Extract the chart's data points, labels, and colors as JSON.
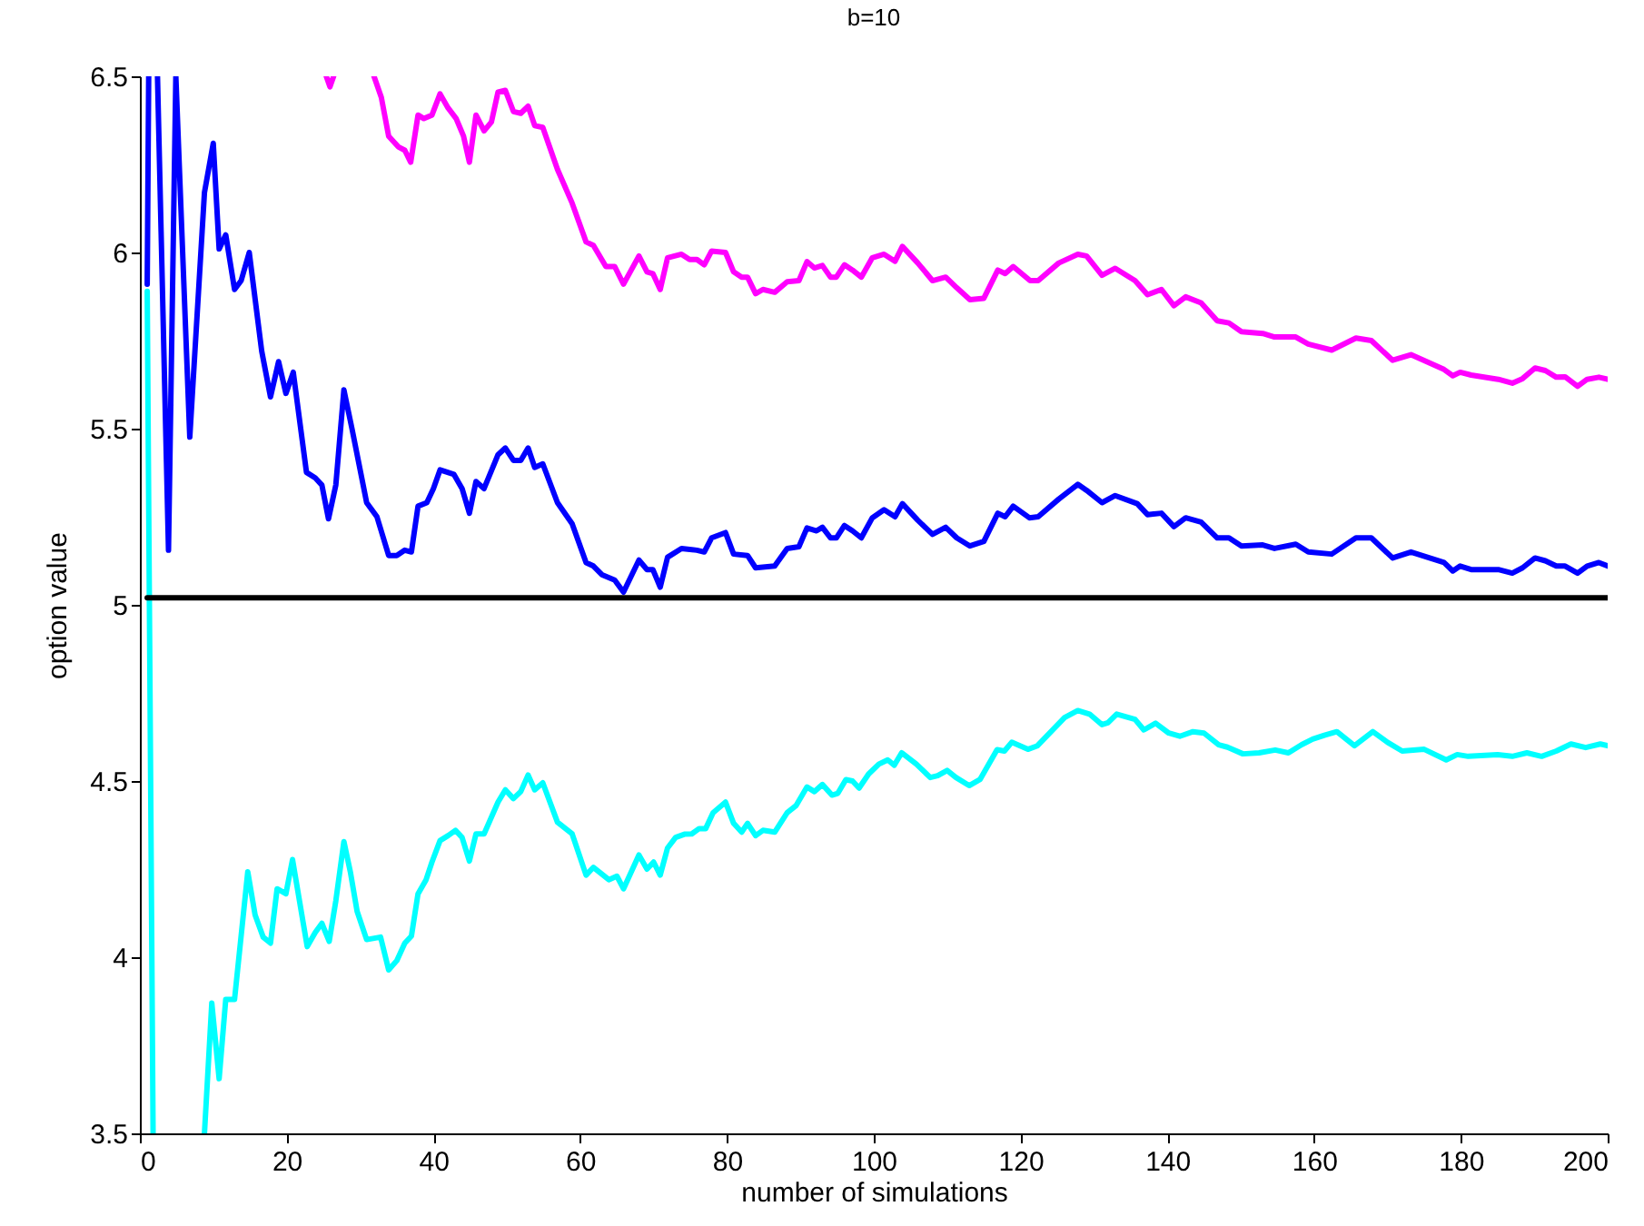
{
  "chart_data": {
    "type": "line",
    "title": "b=10",
    "xlabel": "number of simulations",
    "ylabel": "option value",
    "xlim": [
      0,
      200
    ],
    "ylim": [
      3.5,
      6.5
    ],
    "xticks": [
      0,
      20,
      40,
      60,
      80,
      100,
      120,
      140,
      160,
      180,
      200
    ],
    "yticks": [
      3.5,
      4,
      4.5,
      5,
      5.5,
      6,
      6.5
    ],
    "grid": false,
    "legend": false,
    "line_style": "solid",
    "series": [
      {
        "color": "#ff00ff",
        "x": [
          25.4,
          25.9,
          26.4,
          29,
          31.9,
          32.9,
          33.9,
          35.2,
          36.1,
          36.9,
          37.9,
          38.7,
          39.8,
          40.9,
          42,
          43.1,
          44.1,
          44.9,
          45.8,
          46.9,
          47.9,
          48.8,
          49.8,
          50.9,
          51.9,
          52.9,
          53.8,
          54.9,
          56.9,
          58.9,
          60.8,
          61.8,
          63.5,
          64.7,
          65.9,
          68,
          69.1,
          69.9,
          70.9,
          71.9,
          73.8,
          74.9,
          75.9,
          76.9,
          77.9,
          79.8,
          80.9,
          82,
          82.8,
          83.9,
          84.9,
          86.5,
          88.2,
          89.8,
          90.9,
          91.9,
          93,
          94.1,
          94.9,
          96,
          97.1,
          98.3,
          99.8,
          101.4,
          102.9,
          103.9,
          106,
          108,
          109.8,
          111.3,
          113.1,
          115,
          116.9,
          117.9,
          119,
          121.3,
          122.4,
          125.2,
          127.8,
          129,
          131.1,
          132.9,
          135.6,
          137.3,
          139.2,
          140.9,
          142.5,
          144.6,
          146.8,
          148.4,
          150.1,
          153,
          154.6,
          157.5,
          159.2,
          162.4,
          165.7,
          167.8,
          170.7,
          173.2,
          177.7,
          178.9,
          179.9,
          181.4,
          185.1,
          187,
          188.4,
          190.1,
          191.5,
          193,
          194.2,
          195.9,
          197.2,
          198.8,
          200
        ],
        "values": [
          6.5,
          6.47,
          6.5,
          null,
          6.5,
          6.44,
          6.33,
          6.3,
          6.29,
          6.256,
          6.39,
          6.38,
          6.39,
          6.45,
          6.41,
          6.38,
          6.33,
          6.256,
          6.39,
          6.345,
          6.37,
          6.455,
          6.46,
          6.4,
          6.395,
          6.415,
          6.36,
          6.355,
          6.236,
          6.14,
          6.03,
          6.02,
          5.96,
          5.96,
          5.91,
          5.99,
          5.945,
          5.94,
          5.895,
          5.985,
          5.995,
          5.98,
          5.98,
          5.965,
          6.004,
          6,
          5.945,
          5.93,
          5.93,
          5.883,
          5.895,
          5.887,
          5.917,
          5.92,
          5.974,
          5.956,
          5.963,
          5.93,
          5.93,
          5.965,
          5.95,
          5.93,
          5.985,
          5.995,
          5.975,
          6.017,
          5.97,
          5.92,
          5.93,
          5.9,
          5.866,
          5.87,
          5.95,
          5.94,
          5.96,
          5.92,
          5.92,
          5.97,
          5.995,
          5.99,
          5.935,
          5.955,
          5.92,
          5.88,
          5.895,
          5.849,
          5.874,
          5.857,
          5.806,
          5.8,
          5.775,
          5.77,
          5.76,
          5.76,
          5.74,
          5.723,
          5.757,
          5.75,
          5.694,
          5.71,
          5.668,
          5.65,
          5.66,
          5.652,
          5.64,
          5.629,
          5.642,
          5.672,
          5.665,
          5.646,
          5.647,
          5.62,
          5.64,
          5.646,
          5.64
        ]
      },
      {
        "color": "#0000ff",
        "x": [
          1,
          1.2,
          2,
          2.4,
          3.9,
          4.9,
          6.8,
          8.8,
          10,
          10.8,
          11.7,
          12.9,
          13.8,
          14.9,
          16.6,
          17.8,
          18.9,
          19.9,
          20.9,
          22.7,
          23.9,
          24.8,
          25.7,
          26.7,
          27.8,
          28.9,
          30.9,
          32.3,
          33.9,
          35,
          36.1,
          37,
          37.9,
          39.1,
          40,
          40.9,
          42.8,
          43.9,
          44.9,
          45.8,
          46.9,
          48.8,
          49.8,
          50.9,
          51.9,
          52.9,
          53.8,
          54.9,
          56.9,
          58.9,
          60.8,
          61.8,
          63,
          64.7,
          65.9,
          68,
          69.1,
          69.9,
          70.9,
          71.9,
          73.8,
          75.9,
          76.9,
          77.9,
          79.8,
          80.9,
          82.8,
          83.9,
          86.5,
          88.2,
          89.8,
          90.9,
          92.2,
          93,
          94.1,
          94.9,
          96,
          97.1,
          98.3,
          99.8,
          101.4,
          102.9,
          103.9,
          106,
          108,
          109.8,
          111.3,
          113.1,
          115,
          116.9,
          117.9,
          119,
          121.2,
          122.4,
          125.2,
          127.8,
          129,
          131.1,
          132.9,
          135.9,
          137.3,
          139.2,
          140.9,
          142.5,
          144.6,
          146.8,
          148.4,
          150.1,
          153,
          154.6,
          157.5,
          159.2,
          162.4,
          165.7,
          167.8,
          170.7,
          173.2,
          177.7,
          178.9,
          179.9,
          181.4,
          185.1,
          187,
          188.4,
          190.1,
          191.5,
          193,
          194.2,
          195.9,
          197.2,
          198.8,
          200
        ],
        "values": [
          5.91,
          6.5,
          null,
          6.5,
          5.155,
          6.5,
          5.476,
          6.17,
          6.31,
          6.01,
          6.05,
          5.895,
          5.92,
          6,
          5.72,
          5.59,
          5.69,
          5.6,
          5.66,
          5.376,
          5.36,
          5.34,
          5.244,
          5.34,
          5.61,
          5.5,
          5.29,
          5.25,
          5.14,
          5.14,
          5.155,
          5.15,
          5.28,
          5.29,
          5.33,
          5.383,
          5.37,
          5.33,
          5.26,
          5.35,
          5.33,
          5.426,
          5.445,
          5.41,
          5.41,
          5.445,
          5.39,
          5.4,
          5.29,
          5.23,
          5.12,
          5.11,
          5.085,
          5.07,
          5.036,
          5.127,
          5.1,
          5.1,
          5.05,
          5.135,
          5.16,
          5.155,
          5.15,
          5.19,
          5.205,
          5.144,
          5.14,
          5.105,
          5.11,
          5.16,
          5.165,
          5.218,
          5.21,
          5.22,
          5.19,
          5.19,
          5.225,
          5.21,
          5.19,
          5.247,
          5.27,
          5.25,
          5.287,
          5.24,
          5.2,
          5.22,
          5.19,
          5.167,
          5.18,
          5.26,
          5.25,
          5.28,
          5.247,
          5.25,
          5.3,
          5.342,
          5.325,
          5.29,
          5.31,
          5.287,
          5.256,
          5.26,
          5.222,
          5.247,
          5.235,
          5.19,
          5.19,
          5.167,
          5.17,
          5.16,
          5.172,
          5.15,
          5.144,
          5.19,
          5.19,
          5.133,
          5.15,
          5.12,
          5.096,
          5.11,
          5.1,
          5.1,
          5.09,
          5.105,
          5.133,
          5.125,
          5.11,
          5.11,
          5.09,
          5.11,
          5.12,
          5.11
        ]
      },
      {
        "color": "#00ffff",
        "x": [
          1,
          1.8,
          5,
          8.8,
          9.8,
          10.8,
          11.7,
          12.9,
          14.7,
          15.7,
          16.8,
          17.8,
          18.7,
          19.9,
          20.8,
          22.8,
          23.9,
          24.8,
          25.8,
          26.7,
          27.8,
          28.7,
          29.6,
          30.9,
          32.8,
          33.9,
          35,
          36.1,
          37,
          37.9,
          39,
          39.8,
          40.9,
          42,
          43,
          43.9,
          44.9,
          45.8,
          46.9,
          48.8,
          49.8,
          50.9,
          51.9,
          52.9,
          53.8,
          54.9,
          56.9,
          58.9,
          60.8,
          61.8,
          63.9,
          65,
          65.9,
          68,
          69.1,
          70,
          70.9,
          71.9,
          73,
          74.2,
          75.2,
          76.2,
          77.1,
          78.1,
          79.8,
          80.9,
          82,
          82.8,
          83.9,
          84.9,
          86.5,
          88.2,
          89.4,
          90.9,
          91.9,
          93,
          94.3,
          95.1,
          96.2,
          97.1,
          98,
          99.3,
          100.7,
          101.9,
          102.8,
          103.8,
          105.8,
          107.7,
          108.7,
          110,
          111.2,
          113,
          114.5,
          116.8,
          117.8,
          118.8,
          121,
          122.3,
          126,
          127.8,
          129.4,
          131.1,
          131.9,
          133.1,
          135.6,
          136.8,
          138.4,
          140.2,
          141.7,
          143.5,
          145,
          147,
          148.2,
          150.3,
          152.5,
          154.7,
          156.5,
          158.3,
          159.8,
          161.4,
          163.1,
          165.5,
          168,
          170,
          172,
          175,
          178,
          179.5,
          181,
          185,
          187,
          189,
          191,
          193,
          195,
          197,
          199,
          200
        ],
        "values": [
          5.89,
          3.5,
          null,
          3.5,
          3.87,
          3.655,
          3.88,
          3.88,
          4.242,
          4.12,
          4.057,
          4.04,
          4.194,
          4.18,
          4.277,
          4.03,
          4.07,
          4.096,
          4.045,
          4.16,
          4.328,
          4.24,
          4.13,
          4.05,
          4.057,
          3.964,
          3.99,
          4.04,
          4.06,
          4.18,
          4.22,
          4.27,
          4.331,
          4.345,
          4.36,
          4.34,
          4.273,
          4.35,
          4.35,
          4.44,
          4.475,
          4.45,
          4.47,
          4.517,
          4.475,
          4.495,
          4.383,
          4.35,
          4.233,
          4.255,
          4.22,
          4.23,
          4.194,
          4.29,
          4.25,
          4.27,
          4.233,
          4.31,
          4.34,
          4.349,
          4.35,
          4.365,
          4.365,
          4.41,
          4.44,
          4.38,
          4.355,
          4.38,
          4.345,
          4.36,
          4.355,
          4.41,
          4.43,
          4.483,
          4.47,
          4.49,
          4.46,
          4.465,
          4.504,
          4.5,
          4.48,
          4.52,
          4.548,
          4.56,
          4.545,
          4.58,
          4.548,
          4.51,
          4.515,
          4.53,
          4.51,
          4.487,
          4.505,
          4.589,
          4.585,
          4.61,
          4.59,
          4.6,
          4.68,
          4.7,
          4.69,
          4.66,
          4.665,
          4.69,
          4.675,
          4.645,
          4.664,
          4.636,
          4.627,
          4.64,
          4.636,
          4.603,
          4.596,
          4.577,
          4.58,
          4.588,
          4.58,
          4.603,
          4.619,
          4.63,
          4.64,
          4.6,
          4.64,
          4.61,
          4.585,
          4.59,
          4.56,
          4.575,
          4.57,
          4.575,
          4.57,
          4.58,
          4.57,
          4.585,
          4.605,
          4.595,
          4.605,
          4.6
        ]
      },
      {
        "color": "#000000",
        "x": [
          1,
          200
        ],
        "values": [
          5.02,
          5.02
        ]
      }
    ]
  }
}
